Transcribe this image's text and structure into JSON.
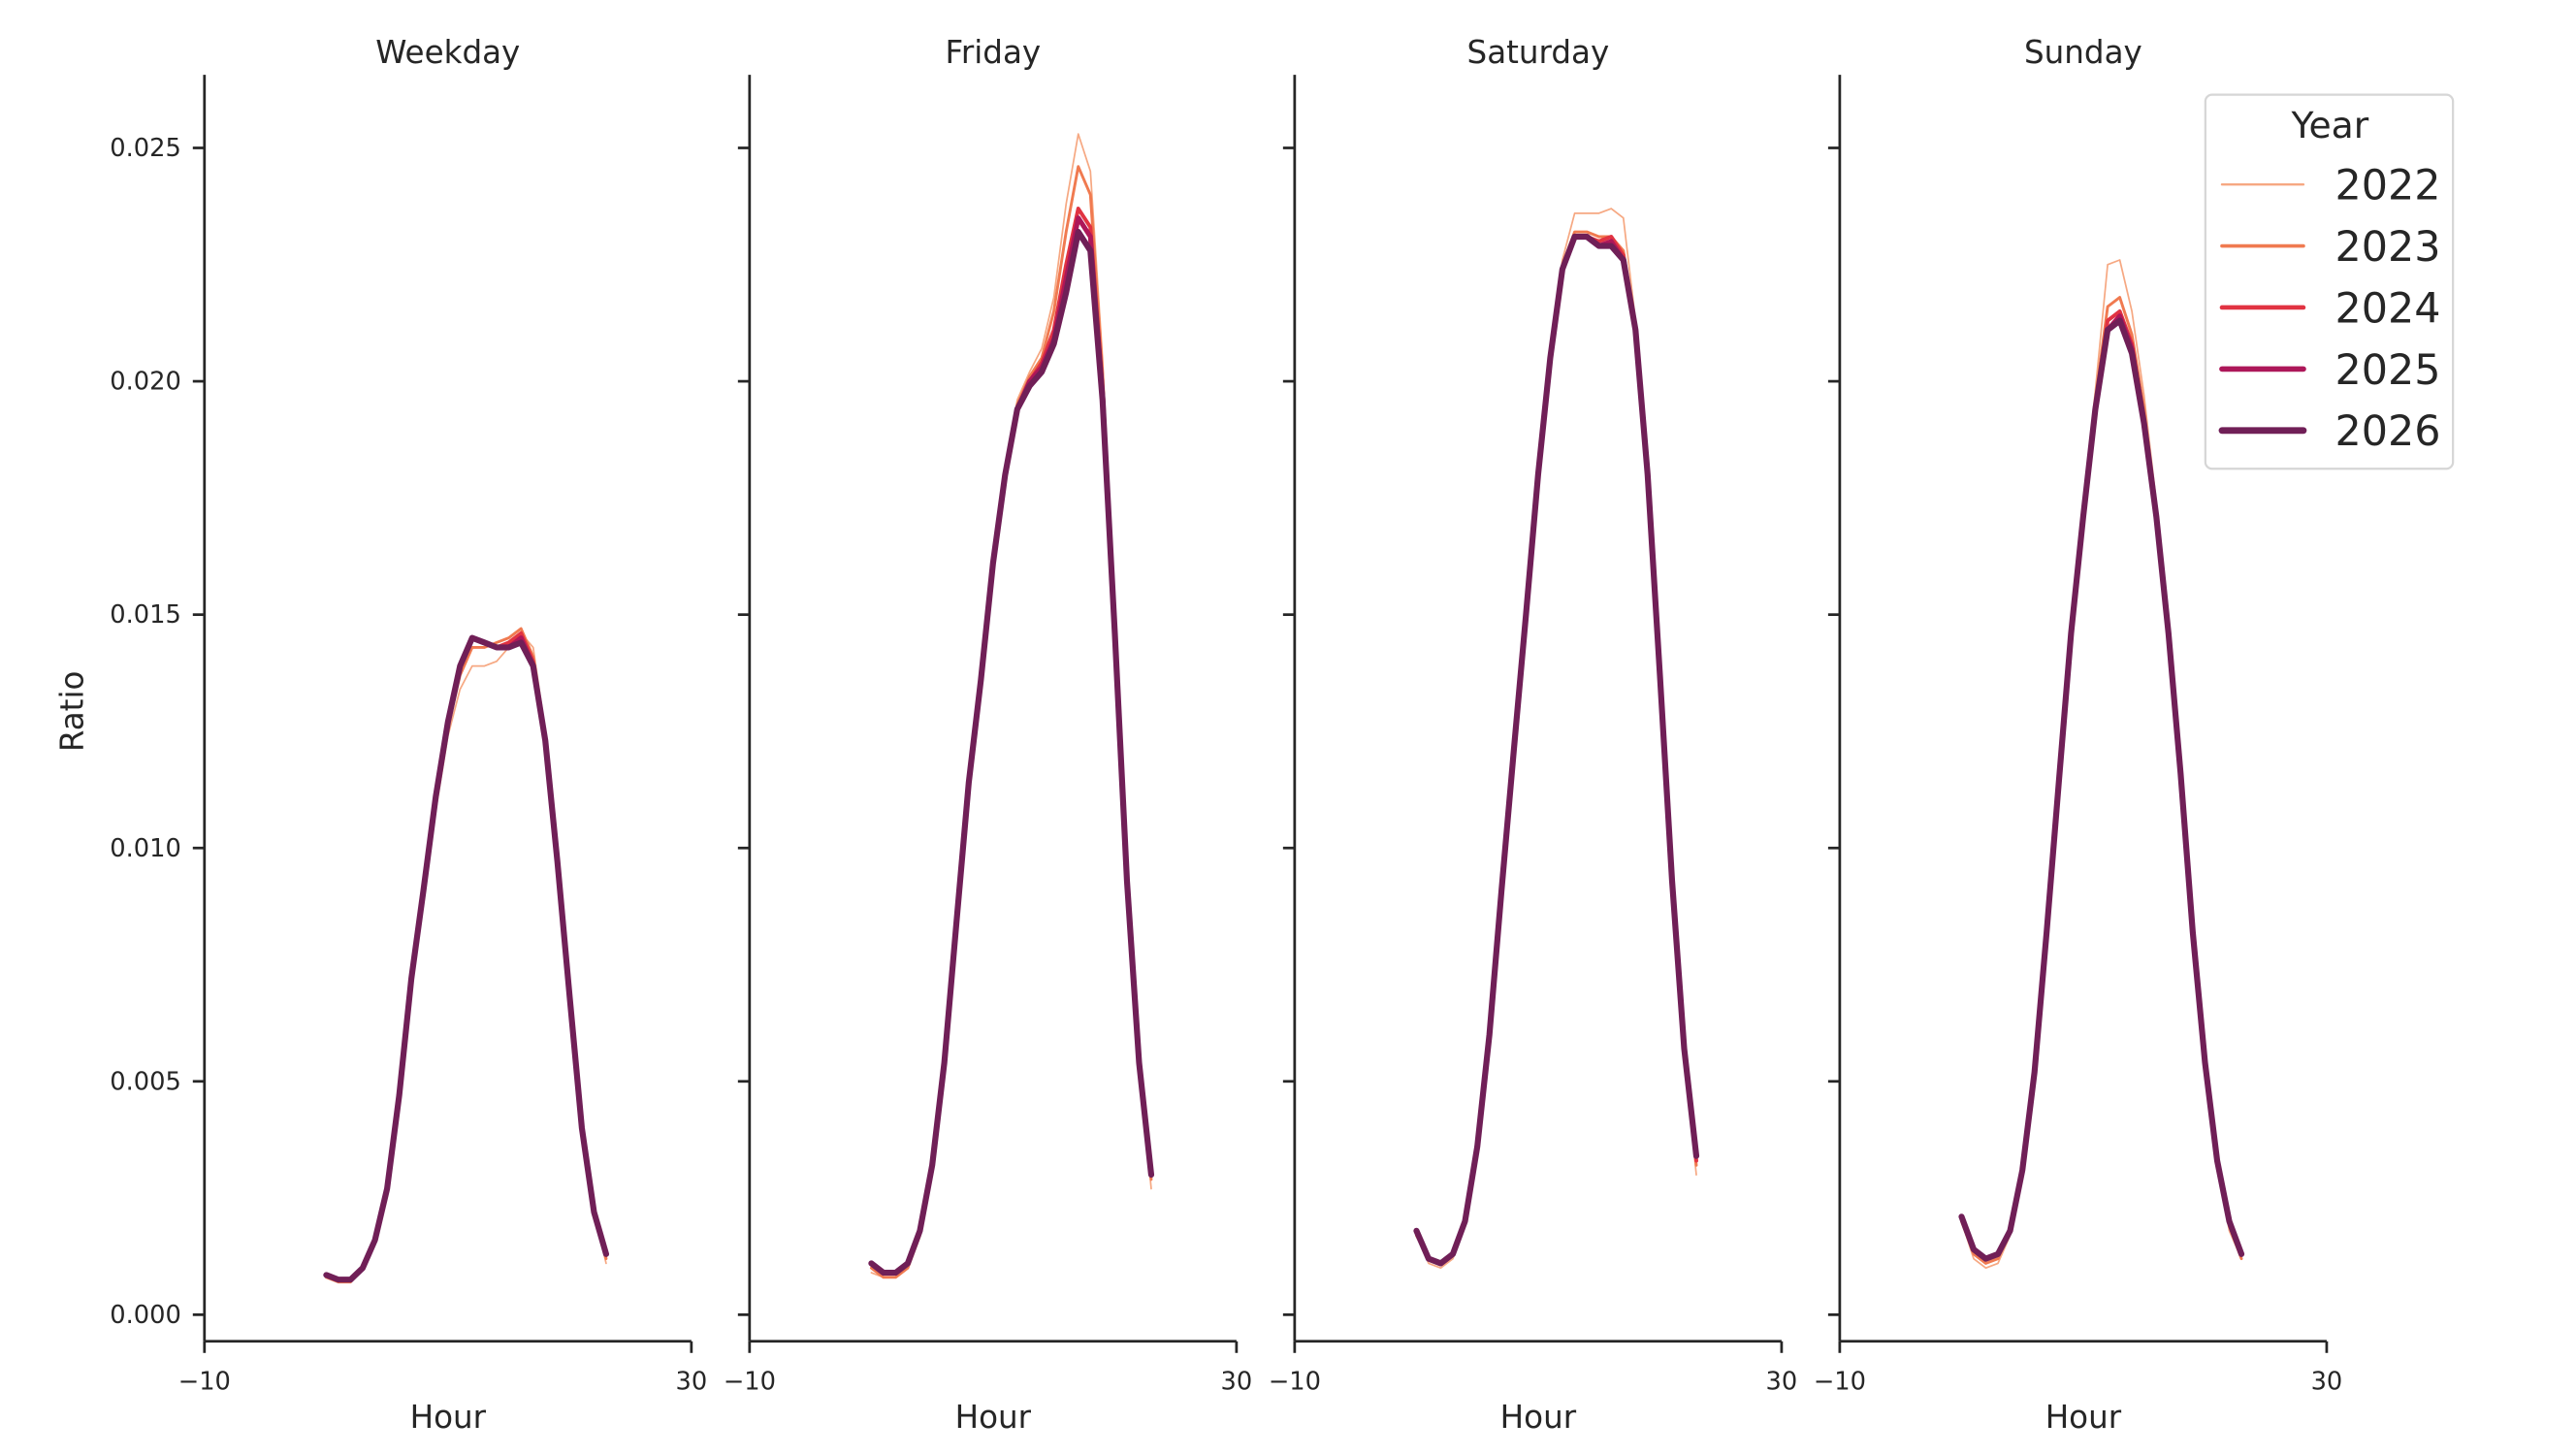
{
  "chart_data": {
    "type": "line",
    "xlabel": "Hour",
    "ylabel": "Ratio",
    "xlim": [
      -10,
      30
    ],
    "ylim": [
      -0.0006,
      0.0266
    ],
    "x_ticks": [
      "−10",
      "30"
    ],
    "x_tick_values": [
      -10,
      30
    ],
    "y_ticks": [
      "0.000",
      "0.005",
      "0.010",
      "0.015",
      "0.020",
      "0.025"
    ],
    "y_tick_values": [
      0,
      0.005,
      0.01,
      0.015,
      0.02,
      0.025
    ],
    "grid": false,
    "legend": {
      "title": "Year",
      "placement": "top-right"
    },
    "x": [
      0,
      1,
      2,
      3,
      4,
      5,
      6,
      7,
      8,
      9,
      10,
      11,
      12,
      13,
      14,
      15,
      16,
      17,
      18,
      19,
      20,
      21,
      22,
      23
    ],
    "series_styles": [
      {
        "name": "2022",
        "color": "#f6a882"
      },
      {
        "name": "2023",
        "color": "#f07a50"
      },
      {
        "name": "2024",
        "color": "#e13342"
      },
      {
        "name": "2025",
        "color": "#ad1759"
      },
      {
        "name": "2026",
        "color": "#701f57"
      }
    ],
    "panels": [
      {
        "title": "Weekday",
        "series": [
          {
            "name": "2022",
            "values": [
              0.0008,
              0.0007,
              0.0007,
              0.001,
              0.0016,
              0.0027,
              0.0046,
              0.007,
              0.0088,
              0.0108,
              0.0124,
              0.0134,
              0.0139,
              0.0139,
              0.014,
              0.0143,
              0.0146,
              0.0143,
              0.0125,
              0.0097,
              0.0068,
              0.004,
              0.0022,
              0.0011
            ]
          },
          {
            "name": "2023",
            "values": [
              0.0008,
              0.0007,
              0.0007,
              0.001,
              0.0016,
              0.0027,
              0.0047,
              0.0071,
              0.009,
              0.011,
              0.0126,
              0.0137,
              0.0143,
              0.0143,
              0.0144,
              0.0145,
              0.0147,
              0.0141,
              0.0124,
              0.0097,
              0.0068,
              0.004,
              0.0022,
              0.0012
            ]
          },
          {
            "name": "2024",
            "values": [
              0.00085,
              0.00075,
              0.00075,
              0.001,
              0.0016,
              0.0027,
              0.0047,
              0.0072,
              0.0091,
              0.0111,
              0.0127,
              0.0139,
              0.0145,
              0.0144,
              0.0143,
              0.0144,
              0.0146,
              0.014,
              0.0123,
              0.0097,
              0.0068,
              0.004,
              0.0022,
              0.0013
            ]
          },
          {
            "name": "2025",
            "values": [
              0.00085,
              0.00075,
              0.00075,
              0.001,
              0.0016,
              0.0027,
              0.0047,
              0.0072,
              0.0091,
              0.0111,
              0.0127,
              0.0139,
              0.0145,
              0.0144,
              0.0143,
              0.0143,
              0.0145,
              0.0139,
              0.0123,
              0.0097,
              0.0068,
              0.004,
              0.0022,
              0.0013
            ]
          },
          {
            "name": "2026",
            "values": [
              0.00085,
              0.00075,
              0.00075,
              0.001,
              0.0016,
              0.0027,
              0.0047,
              0.0072,
              0.0091,
              0.0111,
              0.0127,
              0.0139,
              0.0145,
              0.0144,
              0.0143,
              0.0143,
              0.0144,
              0.0139,
              0.0123,
              0.0097,
              0.0068,
              0.004,
              0.0022,
              0.0013
            ]
          }
        ]
      },
      {
        "title": "Friday",
        "series": [
          {
            "name": "2022",
            "values": [
              0.0009,
              0.0008,
              0.0008,
              0.001,
              0.0017,
              0.0031,
              0.0054,
              0.0084,
              0.0114,
              0.0137,
              0.0162,
              0.0181,
              0.0196,
              0.0202,
              0.0207,
              0.0218,
              0.0238,
              0.0253,
              0.0245,
              0.0205,
              0.015,
              0.0094,
              0.0054,
              0.0027
            ]
          },
          {
            "name": "2023",
            "values": [
              0.001,
              0.0008,
              0.0008,
              0.001,
              0.0017,
              0.0031,
              0.0054,
              0.0084,
              0.0114,
              0.0136,
              0.0161,
              0.018,
              0.0195,
              0.0201,
              0.0205,
              0.0215,
              0.0232,
              0.0246,
              0.024,
              0.0202,
              0.0148,
              0.0094,
              0.0054,
              0.0029
            ]
          },
          {
            "name": "2024",
            "values": [
              0.0011,
              0.0009,
              0.0009,
              0.0011,
              0.0018,
              0.0032,
              0.0054,
              0.0084,
              0.0114,
              0.0136,
              0.0161,
              0.018,
              0.0194,
              0.02,
              0.0204,
              0.0211,
              0.0225,
              0.0237,
              0.0233,
              0.0199,
              0.0147,
              0.0093,
              0.0054,
              0.003
            ]
          },
          {
            "name": "2025",
            "values": [
              0.0011,
              0.0009,
              0.0009,
              0.0011,
              0.0018,
              0.0032,
              0.0054,
              0.0084,
              0.0114,
              0.0136,
              0.0161,
              0.018,
              0.0194,
              0.02,
              0.0203,
              0.0209,
              0.0222,
              0.0235,
              0.0231,
              0.0197,
              0.0146,
              0.0093,
              0.0054,
              0.003
            ]
          },
          {
            "name": "2026",
            "values": [
              0.0011,
              0.0009,
              0.0009,
              0.0011,
              0.0018,
              0.0032,
              0.0054,
              0.0084,
              0.0114,
              0.0136,
              0.0161,
              0.018,
              0.0194,
              0.0199,
              0.0202,
              0.0208,
              0.0219,
              0.0232,
              0.0228,
              0.0196,
              0.0146,
              0.0093,
              0.0054,
              0.003
            ]
          }
        ]
      },
      {
        "title": "Saturday",
        "series": [
          {
            "name": "2022",
            "values": [
              0.0017,
              0.0011,
              0.001,
              0.0012,
              0.0019,
              0.0035,
              0.006,
              0.0091,
              0.0121,
              0.015,
              0.0181,
              0.0207,
              0.0226,
              0.0236,
              0.0236,
              0.0236,
              0.0237,
              0.0235,
              0.0213,
              0.018,
              0.0136,
              0.0091,
              0.0055,
              0.003
            ]
          },
          {
            "name": "2023",
            "values": [
              0.0017,
              0.0012,
              0.0011,
              0.0013,
              0.002,
              0.0036,
              0.006,
              0.0091,
              0.0121,
              0.015,
              0.018,
              0.0206,
              0.0225,
              0.0232,
              0.0232,
              0.0231,
              0.0231,
              0.0228,
              0.0212,
              0.018,
              0.0137,
              0.0092,
              0.0056,
              0.0032
            ]
          },
          {
            "name": "2024",
            "values": [
              0.0018,
              0.0012,
              0.0011,
              0.0013,
              0.002,
              0.0036,
              0.006,
              0.0091,
              0.0121,
              0.015,
              0.018,
              0.0205,
              0.0224,
              0.0231,
              0.0231,
              0.023,
              0.0231,
              0.0227,
              0.0211,
              0.018,
              0.0137,
              0.0093,
              0.0057,
              0.0033
            ]
          },
          {
            "name": "2025",
            "values": [
              0.0018,
              0.0012,
              0.0011,
              0.0013,
              0.002,
              0.0036,
              0.006,
              0.0091,
              0.0121,
              0.015,
              0.018,
              0.0205,
              0.0224,
              0.0231,
              0.0231,
              0.0229,
              0.023,
              0.0226,
              0.0211,
              0.018,
              0.0137,
              0.0093,
              0.0057,
              0.0034
            ]
          },
          {
            "name": "2026",
            "values": [
              0.0018,
              0.0012,
              0.0011,
              0.0013,
              0.002,
              0.0036,
              0.006,
              0.0091,
              0.0121,
              0.015,
              0.018,
              0.0205,
              0.0224,
              0.0231,
              0.0231,
              0.0229,
              0.0229,
              0.0226,
              0.0211,
              0.018,
              0.0137,
              0.0093,
              0.0057,
              0.0034
            ]
          }
        ]
      },
      {
        "title": "Sunday",
        "series": [
          {
            "name": "2022",
            "values": [
              0.002,
              0.0012,
              0.001,
              0.0011,
              0.0017,
              0.003,
              0.0051,
              0.0081,
              0.0114,
              0.0147,
              0.0173,
              0.0198,
              0.0225,
              0.0226,
              0.0215,
              0.0197,
              0.0174,
              0.0147,
              0.0116,
              0.0081,
              0.0053,
              0.0032,
              0.0018,
              0.0012
            ]
          },
          {
            "name": "2023",
            "values": [
              0.002,
              0.0013,
              0.0011,
              0.0012,
              0.0018,
              0.0031,
              0.0052,
              0.0082,
              0.0114,
              0.0146,
              0.0172,
              0.0196,
              0.0216,
              0.0218,
              0.021,
              0.0194,
              0.0172,
              0.0146,
              0.0116,
              0.0082,
              0.0054,
              0.0033,
              0.0019,
              0.0012
            ]
          },
          {
            "name": "2024",
            "values": [
              0.0021,
              0.0014,
              0.0012,
              0.0013,
              0.0018,
              0.0031,
              0.0052,
              0.0082,
              0.0114,
              0.0146,
              0.0171,
              0.0195,
              0.0213,
              0.0215,
              0.0208,
              0.0192,
              0.0171,
              0.0146,
              0.0116,
              0.0082,
              0.0054,
              0.0033,
              0.002,
              0.0013
            ]
          },
          {
            "name": "2025",
            "values": [
              0.0021,
              0.0014,
              0.0012,
              0.0013,
              0.0018,
              0.0031,
              0.0052,
              0.0082,
              0.0114,
              0.0146,
              0.0171,
              0.0194,
              0.0211,
              0.0214,
              0.0207,
              0.0191,
              0.0171,
              0.0146,
              0.0116,
              0.0082,
              0.0054,
              0.0033,
              0.002,
              0.0013
            ]
          },
          {
            "name": "2026",
            "values": [
              0.0021,
              0.0014,
              0.0012,
              0.0013,
              0.0018,
              0.0031,
              0.0052,
              0.0082,
              0.0114,
              0.0146,
              0.0171,
              0.0194,
              0.0211,
              0.0213,
              0.0206,
              0.0191,
              0.0171,
              0.0146,
              0.0116,
              0.0082,
              0.0054,
              0.0033,
              0.002,
              0.0013
            ]
          }
        ]
      }
    ]
  }
}
